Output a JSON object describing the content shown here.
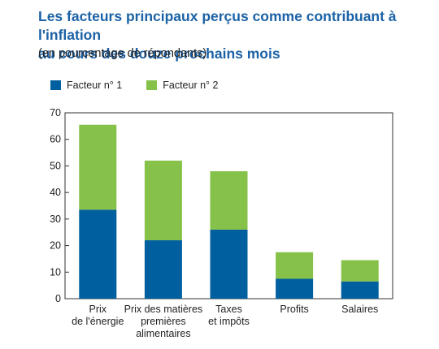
{
  "chart_data": {
    "type": "bar",
    "stacked": true,
    "title_lines": [
      "Les facteurs principaux perçus comme contribuant à l'inflation",
      "au cours des douze prochains mois"
    ],
    "subtitle": "(en pourcentage de répondants)",
    "categories": [
      [
        "Prix",
        "de l'énergie"
      ],
      [
        "Prix des matières",
        "premières",
        "alimentaires"
      ],
      [
        "Taxes",
        "et impôts"
      ],
      [
        "Profits"
      ],
      [
        "Salaires"
      ]
    ],
    "series": [
      {
        "name": "Facteur n° 1",
        "color": "#005f9e",
        "values": [
          33.5,
          22,
          26,
          7.5,
          6.5
        ]
      },
      {
        "name": "Facteur n° 2",
        "color": "#86c14a",
        "values": [
          32,
          30,
          22,
          10,
          8
        ]
      }
    ],
    "ylim": [
      0,
      70
    ],
    "yticks": [
      "0",
      "10",
      "20",
      "30",
      "40",
      "50",
      "60",
      "70"
    ],
    "grid": false,
    "legend_position": "top-left"
  }
}
